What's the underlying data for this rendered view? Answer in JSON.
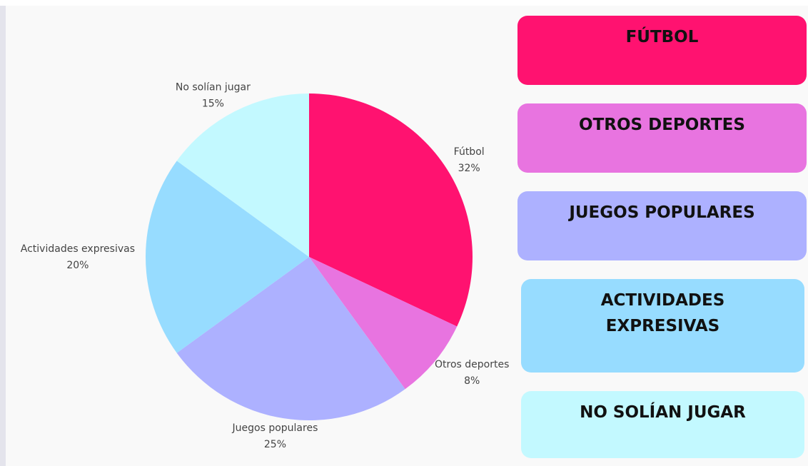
{
  "chart_data": {
    "type": "pie",
    "categories": [
      "Fútbol",
      "Otros deportes",
      "Juegos populares",
      "Actividades expresivas",
      "No solían jugar"
    ],
    "values": [
      32,
      8,
      25,
      20,
      15
    ],
    "value_labels": [
      "32%",
      "8%",
      "25%",
      "20%",
      "15%"
    ],
    "colors": [
      "#ff1270",
      "#e874e0",
      "#adb1ff",
      "#97dcff",
      "#c3f9ff"
    ],
    "legend_boxes": [
      "FÚTBOL",
      "OTROS DEPORTES",
      "JUEGOS POPULARES",
      "ACTIVIDADES EXPRESIVAS",
      "NO SOLÍAN JUGAR"
    ]
  }
}
